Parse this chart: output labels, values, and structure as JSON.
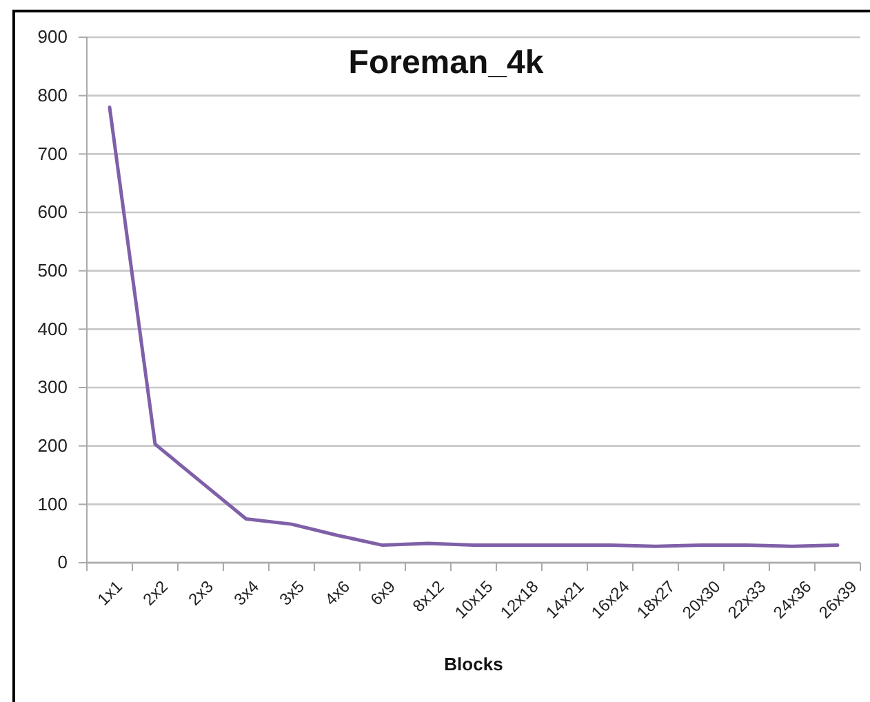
{
  "chart_data": {
    "type": "line",
    "title": "Foreman_4k",
    "xlabel": "Blocks",
    "categories": [
      "1x1",
      "2x2",
      "2x3",
      "3x4",
      "3x5",
      "4x6",
      "6x9",
      "8x12",
      "10x15",
      "12x18",
      "14x21",
      "16x24",
      "18x27",
      "20x30",
      "22x33",
      "24x36",
      "26x39"
    ],
    "series": [
      {
        "color": "#7f60a8",
        "values": [
          780,
          203,
          139,
          75,
          66,
          47,
          30,
          33,
          30,
          30,
          30,
          30,
          28,
          30,
          30,
          28,
          30
        ]
      }
    ],
    "ylim": [
      0,
      900
    ],
    "yticks": [
      0,
      100,
      200,
      300,
      400,
      500,
      600,
      700,
      800,
      900
    ],
    "grid": "y",
    "marker": "none",
    "line_style": "solid"
  }
}
